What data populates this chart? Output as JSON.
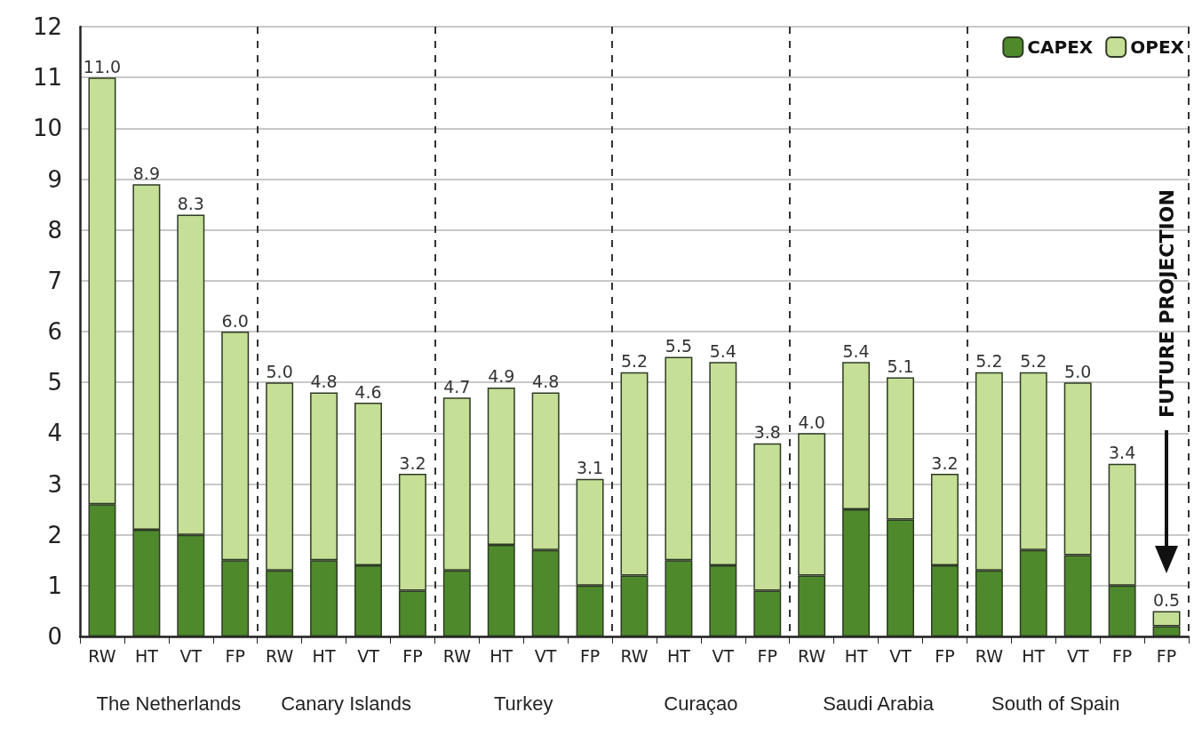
{
  "chart_data": {
    "type": "bar",
    "stacked": true,
    "categories": [
      "RW",
      "HT",
      "VT",
      "FP",
      "RW",
      "HT",
      "VT",
      "FP",
      "RW",
      "HT",
      "VT",
      "FP",
      "RW",
      "HT",
      "VT",
      "FP",
      "RW",
      "HT",
      "VT",
      "FP",
      "RW",
      "HT",
      "VT",
      "FP",
      "FP"
    ],
    "series": [
      {
        "name": "CAPEX",
        "color": "#4e8a2c",
        "values": [
          2.6,
          2.1,
          2.0,
          1.5,
          1.3,
          1.5,
          1.4,
          0.9,
          1.3,
          1.8,
          1.7,
          1.0,
          1.2,
          1.5,
          1.4,
          0.9,
          1.2,
          2.5,
          2.3,
          1.4,
          1.3,
          1.7,
          1.6,
          1.0,
          0.2
        ]
      },
      {
        "name": "OPEX",
        "color": "#c5df96",
        "values": [
          8.4,
          6.8,
          6.3,
          4.5,
          3.7,
          3.3,
          3.2,
          2.3,
          3.4,
          3.1,
          3.1,
          2.1,
          4.0,
          4.0,
          4.0,
          2.9,
          2.8,
          2.9,
          2.8,
          1.8,
          3.9,
          3.5,
          3.4,
          2.4,
          0.3
        ]
      }
    ],
    "totals": [
      "11.0",
      "8.9",
      "8.3",
      "6.0",
      "5.0",
      "4.8",
      "4.6",
      "3.2",
      "4.7",
      "4.9",
      "4.8",
      "3.1",
      "5.2",
      "5.5",
      "5.4",
      "3.8",
      "4.0",
      "5.4",
      "5.1",
      "3.2",
      "5.2",
      "5.2",
      "5.0",
      "3.4",
      "0.5"
    ],
    "annotations": [
      "The Netherlands",
      "Canary Islands",
      "Turkey",
      "Curaçao",
      "Saudi Arabia",
      "South of Spain",
      "FUTURE PROJECTION"
    ],
    "ylim": [
      0,
      12
    ],
    "yticks": [
      0,
      1,
      2,
      3,
      4,
      5,
      6,
      7,
      8,
      9,
      10,
      11,
      12
    ],
    "grid": "y",
    "legend": "top right"
  }
}
